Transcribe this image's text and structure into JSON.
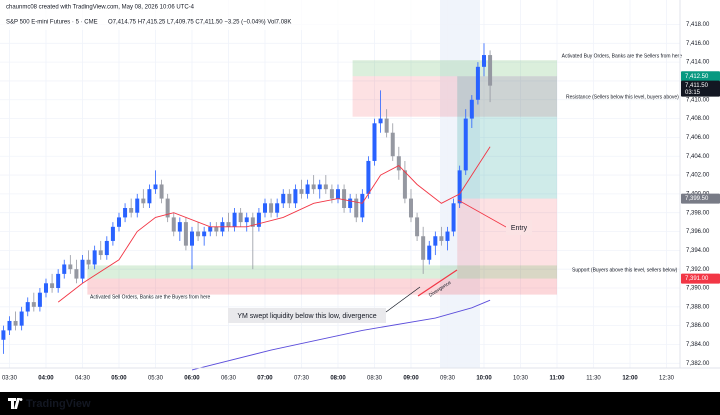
{
  "chart_data": {
    "type": "candlestick",
    "credit": "chaunmc08 created with TradingView.com, May 08, 2026 10:06 UTC-4",
    "title": "S&P 500 E-mini Futures · 5 · CME",
    "legend": "O7,414.75 H7,415.25 L7,409.75 C7,411.50 −3.25 (−0.04%) Vol7.08K",
    "x": [
      205,
      210,
      215,
      220,
      225,
      230,
      235,
      240,
      245,
      250,
      255,
      260,
      265,
      270,
      275,
      280,
      285,
      290,
      295,
      300,
      305,
      310,
      315,
      320,
      325,
      330,
      335,
      340,
      345,
      350,
      355,
      360,
      365,
      370,
      375,
      380,
      385,
      390,
      395,
      400,
      405,
      410,
      415,
      420,
      425,
      430,
      435,
      440,
      445,
      450,
      455,
      460,
      465,
      470,
      475,
      480,
      485,
      490,
      495,
      500,
      505,
      510,
      515,
      520,
      525,
      530,
      535,
      540,
      545,
      550,
      555,
      560,
      565,
      570,
      575,
      580,
      585,
      590,
      595,
      600,
      605
    ],
    "open": [
      7384.5,
      7385.5,
      7386.5,
      7386,
      7387.5,
      7388.5,
      7388,
      7389.5,
      7390.5,
      7390,
      7391.5,
      7392.5,
      7392,
      7391,
      7393,
      7392.5,
      7394,
      7393.5,
      7395,
      7396.5,
      7397.5,
      7398.5,
      7398,
      7399.5,
      7399,
      7400.5,
      7401,
      7399.5,
      7397.5,
      7396,
      7397,
      7394.5,
      7396,
      7395.5,
      7396,
      7396.5,
      7396,
      7397,
      7396.5,
      7398,
      7397,
      7397.5,
      7396.5,
      7398,
      7399,
      7398,
      7399,
      7400,
      7399,
      7400.5,
      7400,
      7401,
      7400.5,
      7401,
      7400.5,
      7399.5,
      7400.5,
      7398.5,
      7399.5,
      7397.5,
      7400,
      7403.5,
      7407.5,
      7408,
      7406.5,
      7404,
      7402.5,
      7399.5,
      7397.5,
      7395.5,
      7393,
      7394.5,
      7395.5,
      7395,
      7396,
      7399,
      7402.5,
      7408,
      7410,
      7413.5,
      7414.75
    ],
    "high": [
      7386,
      7387,
      7387.5,
      7388,
      7389,
      7389.5,
      7390,
      7391,
      7391.5,
      7392,
      7393,
      7393.5,
      7393,
      7393.5,
      7394,
      7394.5,
      7395,
      7395.5,
      7397,
      7398,
      7399,
      7399.5,
      7400,
      7400.5,
      7401,
      7402.5,
      7401.5,
      7400,
      7398,
      7397.5,
      7397.5,
      7396.5,
      7397,
      7396.5,
      7397,
      7397,
      7397.5,
      7398,
      7398.5,
      7398.5,
      7398,
      7398,
      7398.5,
      7399.5,
      7399.5,
      7399.5,
      7400.5,
      7400.5,
      7401,
      7401.5,
      7401.5,
      7402,
      7401.5,
      7402,
      7401,
      7401,
      7401,
      7400,
      7400,
      7400.5,
      7404,
      7408,
      7411,
      7409,
      7407.5,
      7405,
      7403.5,
      7400.5,
      7398,
      7396.5,
      7395,
      7396,
      7396.5,
      7396.5,
      7399.5,
      7403,
      7409,
      7410.5,
      7414,
      7416,
      7415.25
    ],
    "low": [
      7383,
      7385,
      7385.5,
      7385.5,
      7387,
      7387.5,
      7387.5,
      7389,
      7389.5,
      7389.5,
      7391,
      7391.5,
      7390.5,
      7390.5,
      7392,
      7392,
      7393,
      7393,
      7394.5,
      7396,
      7397,
      7397.5,
      7397.5,
      7398.5,
      7398.5,
      7400,
      7399,
      7397,
      7395.5,
      7395,
      7394,
      7392,
      7395,
      7394.5,
      7395.5,
      7395.5,
      7395.5,
      7396,
      7396,
      7396.5,
      7396,
      7392,
      7396,
      7397.5,
      7397.5,
      7397.5,
      7398.5,
      7398.5,
      7398.5,
      7399.5,
      7399.5,
      7400,
      7399.5,
      7400,
      7399,
      7399,
      7398,
      7398,
      7397,
      7397,
      7399.5,
      7403,
      7406.5,
      7406,
      7403.5,
      7401.5,
      7399,
      7397,
      7395,
      7391.5,
      7392.5,
      7393.5,
      7394.5,
      7394,
      7395.5,
      7398.5,
      7402,
      7407,
      7409.5,
      7412.5,
      7409.75
    ],
    "close": [
      7385.5,
      7386.5,
      7386,
      7387.5,
      7388.5,
      7388,
      7389.5,
      7390.5,
      7390,
      7391.5,
      7392.5,
      7392,
      7391,
      7393,
      7392.5,
      7394,
      7393.5,
      7395,
      7396.5,
      7397.5,
      7398.5,
      7398,
      7399.5,
      7399,
      7400.5,
      7401,
      7399.5,
      7397.5,
      7396,
      7397,
      7394.5,
      7396,
      7395.5,
      7396,
      7396.5,
      7396,
      7397,
      7396.5,
      7398,
      7397,
      7397.5,
      7396.5,
      7398,
      7399,
      7398,
      7399,
      7400,
      7399,
      7400.5,
      7400,
      7401,
      7400.5,
      7401,
      7400.5,
      7399.5,
      7400.5,
      7398.5,
      7399.5,
      7397.5,
      7400,
      7403.5,
      7407.5,
      7408,
      7406.5,
      7404,
      7402.5,
      7399.5,
      7397.5,
      7395.5,
      7393,
      7394.5,
      7395.5,
      7395,
      7396,
      7399,
      7402.5,
      7408,
      7410,
      7413.5,
      7414.75,
      7411.5
    ],
    "up_color": "#2962ff",
    "down_color": "#9598a1",
    "lines": [
      {
        "color": "#f23645",
        "x": [
          250,
          270,
          300,
          315,
          330,
          345,
          375,
          405,
          435,
          460,
          480,
          500,
          515,
          530,
          545,
          565,
          580,
          595,
          605
        ],
        "values": [
          7388.5,
          7390.5,
          7393,
          7396,
          7397.5,
          7398,
          7396.5,
          7396.5,
          7397.5,
          7399,
          7399.5,
          7399,
          7402,
          7403,
          7401,
          7399,
          7400,
          7403,
          7405
        ]
      },
      {
        "color": "#5b4ddb",
        "x": [
          360,
          425,
          500,
          560,
          590,
          605
        ],
        "values": [
          7381.3,
          7383.4,
          7385.5,
          7386.8,
          7387.9,
          7388.7
        ]
      }
    ],
    "zones": [
      {
        "x": [
          492,
          660
        ],
        "y": [
          7412.5,
          7414.2
        ],
        "color": "#4caf50",
        "opacity": 0.2
      },
      {
        "x": [
          492,
          660
        ],
        "y": [
          7408.2,
          7412.5
        ],
        "color": "#f23645",
        "opacity": 0.15
      },
      {
        "x": [
          578,
          660
        ],
        "y": [
          7399.5,
          7412.5
        ],
        "color": "#26a69a",
        "opacity": 0.22
      },
      {
        "x": [
          578,
          660
        ],
        "y": [
          7391,
          7399.5
        ],
        "color": "#f23645",
        "opacity": 0.15
      },
      {
        "x": [
          274,
          660
        ],
        "y": [
          7391,
          7392.4
        ],
        "color": "#4caf50",
        "opacity": 0.2
      },
      {
        "x": [
          274,
          660
        ],
        "y": [
          7389.3,
          7391
        ],
        "color": "#f23645",
        "opacity": 0.2
      }
    ],
    "annotations": [
      "Activated Buy Orders, Banks are the Sellers from here",
      "Resistance  (Sellers below this level, buyers above)",
      "Entry",
      "Support  (Buyers above this level, sellers below)",
      "Activated Sell Orders, Banks are the Buyers from here",
      "YM swept liquidity below this low, divergence",
      "Divergence"
    ],
    "price_labels": [
      {
        "value": 7412.5,
        "label": "7,412.50",
        "color": "#089981"
      },
      {
        "value": 7411.5,
        "label": "7,411.50",
        "color": "#131722"
      },
      {
        "value": 7399.5,
        "label": "7,399.50",
        "color": "#787b86"
      },
      {
        "value": 7391,
        "label": "7,391.00",
        "color": "#f23645"
      }
    ],
    "countdown": "03:15",
    "xlim": [
      202.2,
      761.1
    ],
    "ylim": [
      7381.5,
      7420.6
    ],
    "xticks": [
      {
        "value": 210,
        "label": "03:30"
      },
      {
        "value": 240,
        "label": "04:00"
      },
      {
        "value": 270,
        "label": "04:30"
      },
      {
        "value": 300,
        "label": "05:00"
      },
      {
        "value": 330,
        "label": "05:30"
      },
      {
        "value": 360,
        "label": "06:00"
      },
      {
        "value": 390,
        "label": "06:30"
      },
      {
        "value": 420,
        "label": "07:00"
      },
      {
        "value": 450,
        "label": "07:30"
      },
      {
        "value": 480,
        "label": "08:00"
      },
      {
        "value": 510,
        "label": "08:30"
      },
      {
        "value": 540,
        "label": "09:00"
      },
      {
        "value": 570,
        "label": "09:30"
      },
      {
        "value": 600,
        "label": "10:00"
      },
      {
        "value": 630,
        "label": "10:30"
      },
      {
        "value": 660,
        "label": "11:00"
      },
      {
        "value": 690,
        "label": "11:30"
      },
      {
        "value": 720,
        "label": "12:00"
      },
      {
        "value": 750,
        "label": "12:30"
      }
    ],
    "yticks": [
      {
        "value": 7382,
        "label": "7,382.00"
      },
      {
        "value": 7384,
        "label": "7,384.00"
      },
      {
        "value": 7386,
        "label": "7,386.00"
      },
      {
        "value": 7388,
        "label": "7,388.00"
      },
      {
        "value": 7390,
        "label": "7,390.00"
      },
      {
        "value": 7392,
        "label": "7,392.00"
      },
      {
        "value": 7394,
        "label": "7,394.00"
      },
      {
        "value": 7396,
        "label": "7,396.00"
      },
      {
        "value": 7398,
        "label": "7,398.00"
      },
      {
        "value": 7400,
        "label": "7,400.00"
      },
      {
        "value": 7402,
        "label": "7,402.00"
      },
      {
        "value": 7404,
        "label": "7,404.00"
      },
      {
        "value": 7406,
        "label": "7,406.00"
      },
      {
        "value": 7408,
        "label": "7,408.00"
      },
      {
        "value": 7410,
        "label": "7,410.00"
      },
      {
        "value": 7412,
        "label": "7,412.00"
      },
      {
        "value": 7414,
        "label": "7,414.00"
      },
      {
        "value": 7416,
        "label": "7,416.00"
      },
      {
        "value": 7418,
        "label": "7,418.00"
      }
    ],
    "grid": true,
    "footer": "TradingView"
  }
}
